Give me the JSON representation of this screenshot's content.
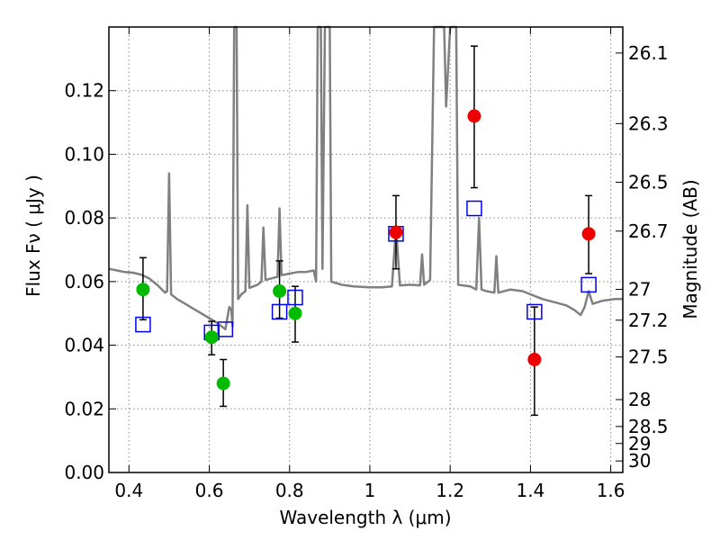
{
  "chart_data": {
    "type": "scatter",
    "xlabel": "Wavelength  λ (μm)",
    "ylabel": "Flux  Fν  ( μJy )",
    "ylabel_right": "Magnitude (AB)",
    "xlim": [
      0.35,
      1.63
    ],
    "ylim": [
      0.0,
      0.14
    ],
    "grid": true,
    "x_ticks": [
      0.4,
      0.6,
      0.8,
      1.0,
      1.2,
      1.4,
      1.6
    ],
    "x_tick_labels": [
      "0.4",
      "0.6",
      "0.8",
      "1",
      "1.2",
      "1.4",
      "1.6"
    ],
    "y_ticks": [
      0.0,
      0.02,
      0.04,
      0.06,
      0.08,
      0.1,
      0.12
    ],
    "y_tick_labels": [
      "0.00",
      "0.02",
      "0.04",
      "0.06",
      "0.08",
      "0.10",
      "0.12"
    ],
    "right_ticks": [
      {
        "mag": 26.1,
        "label": "26.1"
      },
      {
        "mag": 26.3,
        "label": "26.3"
      },
      {
        "mag": 26.5,
        "label": "26.5"
      },
      {
        "mag": 26.7,
        "label": "26.7"
      },
      {
        "mag": 27.0,
        "label": "27"
      },
      {
        "mag": 27.2,
        "label": "27.2"
      },
      {
        "mag": 27.5,
        "label": "27.5"
      },
      {
        "mag": 28.0,
        "label": "28"
      },
      {
        "mag": 28.5,
        "label": "28.5"
      },
      {
        "mag": 29.0,
        "label": "29"
      },
      {
        "mag": 30.0,
        "label": "30"
      }
    ],
    "colors": {
      "spectrum": "#808080",
      "green": "#00bb00",
      "red": "#ee0000",
      "model": "#0000ee",
      "errorbar": "#000000",
      "grid": "#888888"
    },
    "green_points": [
      {
        "x": 0.435,
        "y": 0.0575,
        "err_lo": 0.0095,
        "err_hi": 0.01
      },
      {
        "x": 0.606,
        "y": 0.0425,
        "err_lo": 0.0055,
        "err_hi": 0.005
      },
      {
        "x": 0.635,
        "y": 0.028,
        "err_lo": 0.0072,
        "err_hi": 0.0075
      },
      {
        "x": 0.775,
        "y": 0.057,
        "err_lo": 0.0085,
        "err_hi": 0.0095
      },
      {
        "x": 0.814,
        "y": 0.05,
        "err_lo": 0.009,
        "err_hi": 0.0085
      }
    ],
    "red_points": [
      {
        "x": 1.065,
        "y": 0.0755,
        "err_lo": 0.0115,
        "err_hi": 0.0115
      },
      {
        "x": 1.26,
        "y": 0.112,
        "err_lo": 0.0225,
        "err_hi": 0.022
      },
      {
        "x": 1.41,
        "y": 0.0355,
        "err_lo": 0.0175,
        "err_hi": 0.0165
      },
      {
        "x": 1.545,
        "y": 0.075,
        "err_lo": 0.0125,
        "err_hi": 0.012
      }
    ],
    "model_points": [
      {
        "x": 0.435,
        "y": 0.0465
      },
      {
        "x": 0.606,
        "y": 0.044
      },
      {
        "x": 0.64,
        "y": 0.045
      },
      {
        "x": 0.775,
        "y": 0.0505
      },
      {
        "x": 0.814,
        "y": 0.055
      },
      {
        "x": 1.065,
        "y": 0.075
      },
      {
        "x": 1.26,
        "y": 0.083
      },
      {
        "x": 1.41,
        "y": 0.0505
      },
      {
        "x": 1.545,
        "y": 0.059
      }
    ],
    "spectrum": [
      [
        0.35,
        0.064
      ],
      [
        0.37,
        0.0635
      ],
      [
        0.39,
        0.063
      ],
      [
        0.41,
        0.0628
      ],
      [
        0.43,
        0.0622
      ],
      [
        0.45,
        0.061
      ],
      [
        0.47,
        0.059
      ],
      [
        0.49,
        0.0565
      ],
      [
        0.495,
        0.057
      ],
      [
        0.5,
        0.094
      ],
      [
        0.505,
        0.056
      ],
      [
        0.52,
        0.0545
      ],
      [
        0.54,
        0.053
      ],
      [
        0.56,
        0.0515
      ],
      [
        0.58,
        0.05
      ],
      [
        0.6,
        0.0485
      ],
      [
        0.62,
        0.047
      ],
      [
        0.64,
        0.045
      ],
      [
        0.65,
        0.052
      ],
      [
        0.655,
        0.051
      ],
      [
        0.658,
        0.046
      ],
      [
        0.662,
        0.14
      ],
      [
        0.668,
        0.14
      ],
      [
        0.672,
        0.0545
      ],
      [
        0.68,
        0.056
      ],
      [
        0.69,
        0.057
      ],
      [
        0.695,
        0.084
      ],
      [
        0.7,
        0.058
      ],
      [
        0.72,
        0.059
      ],
      [
        0.73,
        0.06
      ],
      [
        0.735,
        0.077
      ],
      [
        0.74,
        0.0605
      ],
      [
        0.755,
        0.061
      ],
      [
        0.77,
        0.0615
      ],
      [
        0.775,
        0.083
      ],
      [
        0.78,
        0.062
      ],
      [
        0.8,
        0.0625
      ],
      [
        0.82,
        0.063
      ],
      [
        0.84,
        0.063
      ],
      [
        0.86,
        0.0635
      ],
      [
        0.866,
        0.06
      ],
      [
        0.87,
        0.14
      ],
      [
        0.878,
        0.14
      ],
      [
        0.882,
        0.064
      ],
      [
        0.888,
        0.14
      ],
      [
        0.9,
        0.14
      ],
      [
        0.904,
        0.06
      ],
      [
        0.93,
        0.059
      ],
      [
        0.96,
        0.0585
      ],
      [
        1.0,
        0.0582
      ],
      [
        1.03,
        0.0582
      ],
      [
        1.055,
        0.0585
      ],
      [
        1.065,
        0.077
      ],
      [
        1.075,
        0.0588
      ],
      [
        1.1,
        0.059
      ],
      [
        1.125,
        0.0588
      ],
      [
        1.13,
        0.0685
      ],
      [
        1.135,
        0.059
      ],
      [
        1.15,
        0.0605
      ],
      [
        1.16,
        0.14
      ],
      [
        1.185,
        0.14
      ],
      [
        1.19,
        0.115
      ],
      [
        1.2,
        0.14
      ],
      [
        1.215,
        0.14
      ],
      [
        1.22,
        0.059
      ],
      [
        1.25,
        0.0585
      ],
      [
        1.265,
        0.0575
      ],
      [
        1.272,
        0.08
      ],
      [
        1.278,
        0.0575
      ],
      [
        1.29,
        0.057
      ],
      [
        1.31,
        0.0565
      ],
      [
        1.315,
        0.068
      ],
      [
        1.32,
        0.0565
      ],
      [
        1.35,
        0.0575
      ],
      [
        1.38,
        0.057
      ],
      [
        1.4,
        0.056
      ],
      [
        1.43,
        0.0545
      ],
      [
        1.46,
        0.0535
      ],
      [
        1.49,
        0.0525
      ],
      [
        1.51,
        0.051
      ],
      [
        1.525,
        0.0495
      ],
      [
        1.535,
        0.052
      ],
      [
        1.545,
        0.057
      ],
      [
        1.555,
        0.053
      ],
      [
        1.58,
        0.054
      ],
      [
        1.61,
        0.0545
      ],
      [
        1.63,
        0.0545
      ]
    ]
  }
}
